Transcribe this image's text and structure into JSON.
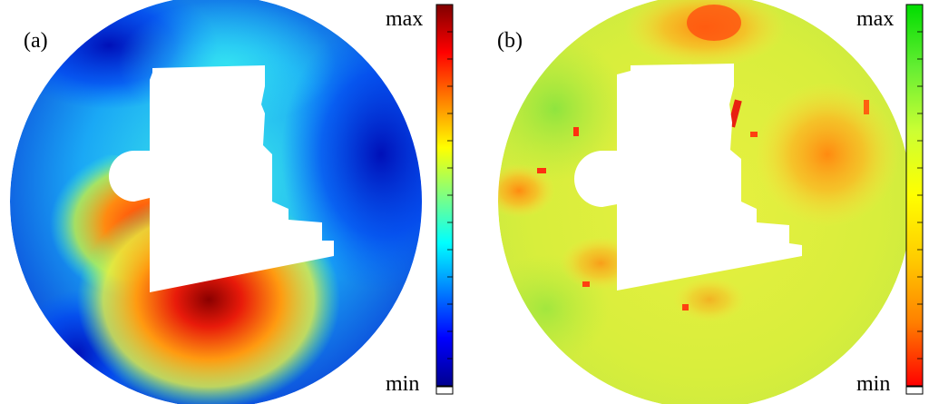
{
  "panels": [
    {
      "id": "a",
      "label": "(a)",
      "colorbar": {
        "max_label": "max",
        "min_label": "min",
        "colormap": "jet",
        "stops": [
          "#00008f",
          "#0000ff",
          "#0080ff",
          "#00ffff",
          "#80ff80",
          "#ffff00",
          "#ff8000",
          "#ff0000",
          "#800000"
        ]
      }
    },
    {
      "id": "b",
      "label": "(b)",
      "colorbar": {
        "max_label": "max",
        "min_label": "min",
        "colormap": "green-yellow-red",
        "stops": [
          "#ff0000",
          "#ff8000",
          "#ffcc00",
          "#ffff00",
          "#ccff33",
          "#66ee33",
          "#00dd00"
        ]
      }
    }
  ]
}
